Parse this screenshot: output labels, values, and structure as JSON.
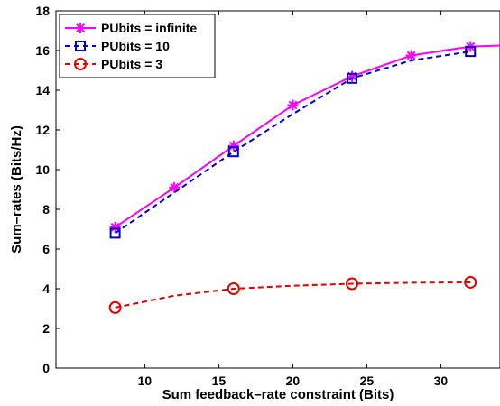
{
  "chart_data": {
    "type": "line",
    "title": "",
    "xlabel": "Sum feedback–rate constraint (Bits)",
    "ylabel": "Sum–rates (Bits/Hz)",
    "xlim": [
      4,
      34
    ],
    "ylim": [
      0,
      18
    ],
    "xticks": [
      10,
      15,
      20,
      25,
      30
    ],
    "yticks": [
      0,
      2,
      4,
      6,
      8,
      10,
      12,
      14,
      16,
      18
    ],
    "grid": false,
    "legend_position": "top-left",
    "series": [
      {
        "name": "PUbits = infinite",
        "color": "#ff00ff",
        "line_style": "solid",
        "marker": "asterisk",
        "line": {
          "x": [
            8,
            12,
            16,
            20,
            24,
            28,
            32,
            34
          ],
          "y": [
            7.1,
            9.1,
            11.2,
            13.25,
            14.7,
            15.75,
            16.2,
            16.25
          ]
        },
        "markers": {
          "x": [
            8,
            12,
            16,
            20,
            24,
            28,
            32
          ],
          "y": [
            7.1,
            9.1,
            11.2,
            13.25,
            14.7,
            15.75,
            16.2
          ]
        }
      },
      {
        "name": "PUbits = 10",
        "color": "#0000cc",
        "line_style": "dashed",
        "marker": "square",
        "line": {
          "x": [
            8,
            12,
            16,
            20,
            24,
            28,
            32
          ],
          "y": [
            6.8,
            8.85,
            10.9,
            12.8,
            14.6,
            15.5,
            15.95
          ]
        },
        "markers": {
          "x": [
            8,
            16,
            24,
            32
          ],
          "y": [
            6.8,
            10.9,
            14.6,
            15.95
          ]
        }
      },
      {
        "name": "PUbits = 3",
        "color": "#e00000",
        "line_style": "dashed",
        "marker": "circle",
        "line": {
          "x": [
            8,
            12,
            16,
            20,
            24,
            28,
            32
          ],
          "y": [
            3.05,
            3.65,
            4.0,
            4.15,
            4.25,
            4.3,
            4.32
          ]
        },
        "markers": {
          "x": [
            8,
            16,
            24,
            32
          ],
          "y": [
            3.05,
            4.0,
            4.25,
            4.32
          ]
        }
      }
    ]
  }
}
